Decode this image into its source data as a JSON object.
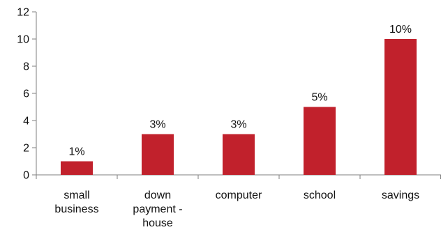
{
  "chart_data": {
    "type": "bar",
    "categories": [
      "small business",
      "down payment - house",
      "computer",
      "school",
      "savings"
    ],
    "category_label_lines": [
      [
        "small",
        "business"
      ],
      [
        "down",
        "payment -",
        "house"
      ],
      [
        "computer"
      ],
      [
        "school"
      ],
      [
        "savings"
      ]
    ],
    "values": [
      1,
      3,
      3,
      5,
      10
    ],
    "data_labels": [
      "1%",
      "3%",
      "3%",
      "5%",
      "10%"
    ],
    "title": "",
    "xlabel": "",
    "ylabel": "",
    "ylim": [
      0,
      12
    ],
    "yticks": [
      0,
      2,
      4,
      6,
      8,
      10,
      12
    ],
    "grid": false,
    "legend": "none",
    "bar_color": "#C1212C",
    "axis_color": "#7F7F7F"
  }
}
